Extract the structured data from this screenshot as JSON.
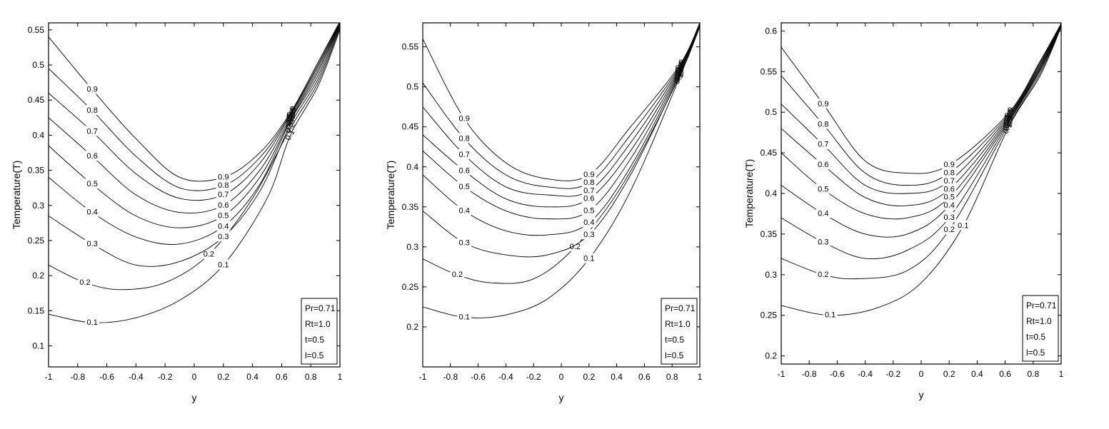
{
  "chart_data": [
    {
      "type": "line",
      "subtype": "contour",
      "xlabel": "y",
      "ylabel": "Temperature(T)",
      "xlim": [
        -1,
        1
      ],
      "ylim": [
        0.07,
        0.56
      ],
      "xticks": [
        "-1",
        "-0.8",
        "-0.6",
        "-0.4",
        "-0.2",
        "0",
        "0.2",
        "0.4",
        "0.6",
        "0.8",
        "1"
      ],
      "yticks": [
        "0.1",
        "0.15",
        "0.2",
        "0.25",
        "0.3",
        "0.35",
        "0.4",
        "0.45",
        "0.5",
        "0.55"
      ],
      "legend": [
        "Pr=0.71",
        "Rt=1.0",
        "t=0.5",
        "l=0.5"
      ],
      "legend_position": "bottom-right",
      "convergence_x": 0.66,
      "series": [
        {
          "label": "0.1",
          "x": [
            -1,
            -0.7,
            -0.4,
            -0.1,
            0.2,
            0.5,
            0.66,
            0.85,
            1
          ],
          "y": [
            0.145,
            0.133,
            0.14,
            0.165,
            0.215,
            0.31,
            0.4,
            0.47,
            0.55
          ]
        },
        {
          "label": "0.2",
          "x": [
            -1,
            -0.75,
            -0.5,
            -0.2,
            0.1,
            0.4,
            0.66,
            0.85,
            1
          ],
          "y": [
            0.215,
            0.19,
            0.18,
            0.19,
            0.23,
            0.31,
            0.41,
            0.475,
            0.553
          ]
        },
        {
          "label": "0.3",
          "x": [
            -1,
            -0.7,
            -0.4,
            -0.1,
            0.2,
            0.45,
            0.66,
            0.85,
            1
          ],
          "y": [
            0.285,
            0.245,
            0.215,
            0.22,
            0.255,
            0.32,
            0.415,
            0.48,
            0.555
          ]
        },
        {
          "label": "0.4",
          "x": [
            -1,
            -0.7,
            -0.4,
            -0.1,
            0.2,
            0.45,
            0.66,
            0.85,
            1
          ],
          "y": [
            0.34,
            0.29,
            0.255,
            0.245,
            0.27,
            0.33,
            0.42,
            0.485,
            0.557
          ]
        },
        {
          "label": "0.5",
          "x": [
            -1,
            -0.7,
            -0.4,
            -0.1,
            0.2,
            0.45,
            0.66,
            0.85,
            1
          ],
          "y": [
            0.385,
            0.33,
            0.285,
            0.268,
            0.285,
            0.34,
            0.422,
            0.49,
            0.558
          ]
        },
        {
          "label": "0.6",
          "x": [
            -1,
            -0.7,
            -0.4,
            -0.1,
            0.2,
            0.45,
            0.66,
            0.85,
            1
          ],
          "y": [
            0.425,
            0.37,
            0.315,
            0.29,
            0.3,
            0.35,
            0.425,
            0.494,
            0.559
          ]
        },
        {
          "label": "0.7",
          "x": [
            -1,
            -0.7,
            -0.4,
            -0.1,
            0.2,
            0.45,
            0.66,
            0.85,
            1
          ],
          "y": [
            0.46,
            0.405,
            0.345,
            0.31,
            0.315,
            0.36,
            0.428,
            0.498,
            0.56
          ]
        },
        {
          "label": "0.8",
          "x": [
            -1,
            -0.7,
            -0.4,
            -0.1,
            0.2,
            0.45,
            0.66,
            0.85,
            1
          ],
          "y": [
            0.495,
            0.435,
            0.37,
            0.325,
            0.328,
            0.368,
            0.43,
            0.501,
            0.561
          ]
        },
        {
          "label": "0.9",
          "x": [
            -1,
            -0.7,
            -0.4,
            -0.1,
            0.2,
            0.45,
            0.66,
            0.85,
            1
          ],
          "y": [
            0.54,
            0.465,
            0.395,
            0.34,
            0.34,
            0.375,
            0.432,
            0.504,
            0.562
          ]
        }
      ]
    },
    {
      "type": "line",
      "subtype": "contour",
      "xlabel": "y",
      "ylabel": "Temperature(T)",
      "xlim": [
        -1,
        1
      ],
      "ylim": [
        0.15,
        0.58
      ],
      "xticks": [
        "-1",
        "-0.8",
        "-0.6",
        "-0.4",
        "-0.2",
        "0",
        "0.2",
        "0.4",
        "0.6",
        "0.8",
        "1"
      ],
      "yticks": [
        "0.2",
        "0.25",
        "0.3",
        "0.35",
        "0.4",
        "0.45",
        "0.5",
        "0.55"
      ],
      "legend": [
        "Pr=0.71",
        "Rt=1.0",
        "t=0.5",
        "l=0.5"
      ],
      "legend_position": "bottom-right",
      "convergence_x": 0.85,
      "series": [
        {
          "label": "0.1",
          "x": [
            -1,
            -0.7,
            -0.4,
            -0.1,
            0.2,
            0.5,
            0.85,
            1
          ],
          "y": [
            0.225,
            0.212,
            0.215,
            0.235,
            0.285,
            0.37,
            0.51,
            0.575
          ]
        },
        {
          "label": "0.2",
          "x": [
            -1,
            -0.75,
            -0.5,
            -0.2,
            0.1,
            0.45,
            0.85,
            1
          ],
          "y": [
            0.285,
            0.265,
            0.255,
            0.26,
            0.3,
            0.38,
            0.512,
            0.576
          ]
        },
        {
          "label": "0.3",
          "x": [
            -1,
            -0.7,
            -0.4,
            -0.1,
            0.2,
            0.5,
            0.85,
            1
          ],
          "y": [
            0.345,
            0.305,
            0.29,
            0.29,
            0.315,
            0.39,
            0.514,
            0.577
          ]
        },
        {
          "label": "0.4",
          "x": [
            -1,
            -0.7,
            -0.4,
            -0.1,
            0.2,
            0.5,
            0.85,
            1
          ],
          "y": [
            0.39,
            0.345,
            0.32,
            0.315,
            0.33,
            0.4,
            0.516,
            0.577
          ]
        },
        {
          "label": "0.5",
          "x": [
            -1,
            -0.7,
            -0.4,
            -0.1,
            0.2,
            0.5,
            0.85,
            1
          ],
          "y": [
            0.42,
            0.375,
            0.345,
            0.335,
            0.345,
            0.41,
            0.518,
            0.578
          ]
        },
        {
          "label": "0.6",
          "x": [
            -1,
            -0.7,
            -0.4,
            -0.1,
            0.2,
            0.5,
            0.85,
            1
          ],
          "y": [
            0.44,
            0.395,
            0.36,
            0.35,
            0.36,
            0.42,
            0.52,
            0.578
          ]
        },
        {
          "label": "0.7",
          "x": [
            -1,
            -0.7,
            -0.4,
            -0.1,
            0.2,
            0.5,
            0.85,
            1
          ],
          "y": [
            0.475,
            0.415,
            0.375,
            0.365,
            0.37,
            0.43,
            0.522,
            0.579
          ]
        },
        {
          "label": "0.8",
          "x": [
            -1,
            -0.7,
            -0.4,
            -0.1,
            0.2,
            0.5,
            0.85,
            1
          ],
          "y": [
            0.505,
            0.435,
            0.39,
            0.375,
            0.38,
            0.44,
            0.524,
            0.579
          ]
        },
        {
          "label": "0.9",
          "x": [
            -1,
            -0.7,
            -0.4,
            -0.1,
            0.2,
            0.5,
            0.85,
            1
          ],
          "y": [
            0.56,
            0.46,
            0.405,
            0.385,
            0.39,
            0.45,
            0.526,
            0.58
          ]
        }
      ]
    },
    {
      "type": "line",
      "subtype": "contour",
      "xlabel": "y",
      "ylabel": "Temperature(T)",
      "xlim": [
        -1,
        1
      ],
      "ylim": [
        0.19,
        0.61
      ],
      "xticks": [
        "-1",
        "-0.8",
        "-0.6",
        "-0.4",
        "-0.2",
        "0",
        "0.2",
        "0.4",
        "0.6",
        "0.8",
        "1"
      ],
      "yticks": [
        "0.2",
        "0.25",
        "0.3",
        "0.35",
        "0.4",
        "0.45",
        "0.5",
        "0.55",
        "0.6"
      ],
      "legend": [
        "Pr=0.71",
        "Rt=1.0",
        "t=0.5",
        "l=0.5"
      ],
      "legend_position": "bottom-right",
      "convergence_x": 0.62,
      "series": [
        {
          "label": "0.1",
          "x": [
            -1,
            -0.65,
            -0.3,
            0,
            0.3,
            0.62,
            0.85,
            1
          ],
          "y": [
            0.262,
            0.25,
            0.26,
            0.29,
            0.36,
            0.48,
            0.545,
            0.605
          ]
        },
        {
          "label": "0.2",
          "x": [
            -1,
            -0.7,
            -0.45,
            -0.1,
            0.2,
            0.62,
            0.85,
            1
          ],
          "y": [
            0.32,
            0.3,
            0.295,
            0.305,
            0.355,
            0.483,
            0.548,
            0.606
          ]
        },
        {
          "label": "0.3",
          "x": [
            -1,
            -0.7,
            -0.4,
            -0.1,
            0.2,
            0.62,
            0.85,
            1
          ],
          "y": [
            0.37,
            0.34,
            0.32,
            0.33,
            0.37,
            0.486,
            0.551,
            0.606
          ]
        },
        {
          "label": "0.4",
          "x": [
            -1,
            -0.7,
            -0.4,
            -0.1,
            0.2,
            0.62,
            0.85,
            1
          ],
          "y": [
            0.41,
            0.375,
            0.35,
            0.35,
            0.385,
            0.488,
            0.553,
            0.607
          ]
        },
        {
          "label": "0.5",
          "x": [
            -1,
            -0.7,
            -0.4,
            -0.1,
            0.2,
            0.62,
            0.85,
            1
          ],
          "y": [
            0.45,
            0.405,
            0.375,
            0.37,
            0.395,
            0.49,
            0.555,
            0.607
          ]
        },
        {
          "label": "0.6",
          "x": [
            -1,
            -0.7,
            -0.4,
            -0.1,
            0.2,
            0.62,
            0.85,
            1
          ],
          "y": [
            0.48,
            0.435,
            0.395,
            0.385,
            0.405,
            0.492,
            0.557,
            0.608
          ]
        },
        {
          "label": "0.7",
          "x": [
            -1,
            -0.7,
            -0.4,
            -0.1,
            0.2,
            0.62,
            0.85,
            1
          ],
          "y": [
            0.51,
            0.46,
            0.41,
            0.4,
            0.415,
            0.494,
            0.559,
            0.608
          ]
        },
        {
          "label": "0.8",
          "x": [
            -1,
            -0.7,
            -0.4,
            -0.1,
            0.2,
            0.62,
            0.85,
            1
          ],
          "y": [
            0.545,
            0.485,
            0.425,
            0.41,
            0.425,
            0.496,
            0.561,
            0.609
          ]
        },
        {
          "label": "0.9",
          "x": [
            -1,
            -0.7,
            -0.4,
            -0.1,
            0.2,
            0.62,
            0.85,
            1
          ],
          "y": [
            0.58,
            0.51,
            0.44,
            0.425,
            0.435,
            0.498,
            0.563,
            0.609
          ]
        }
      ]
    }
  ]
}
